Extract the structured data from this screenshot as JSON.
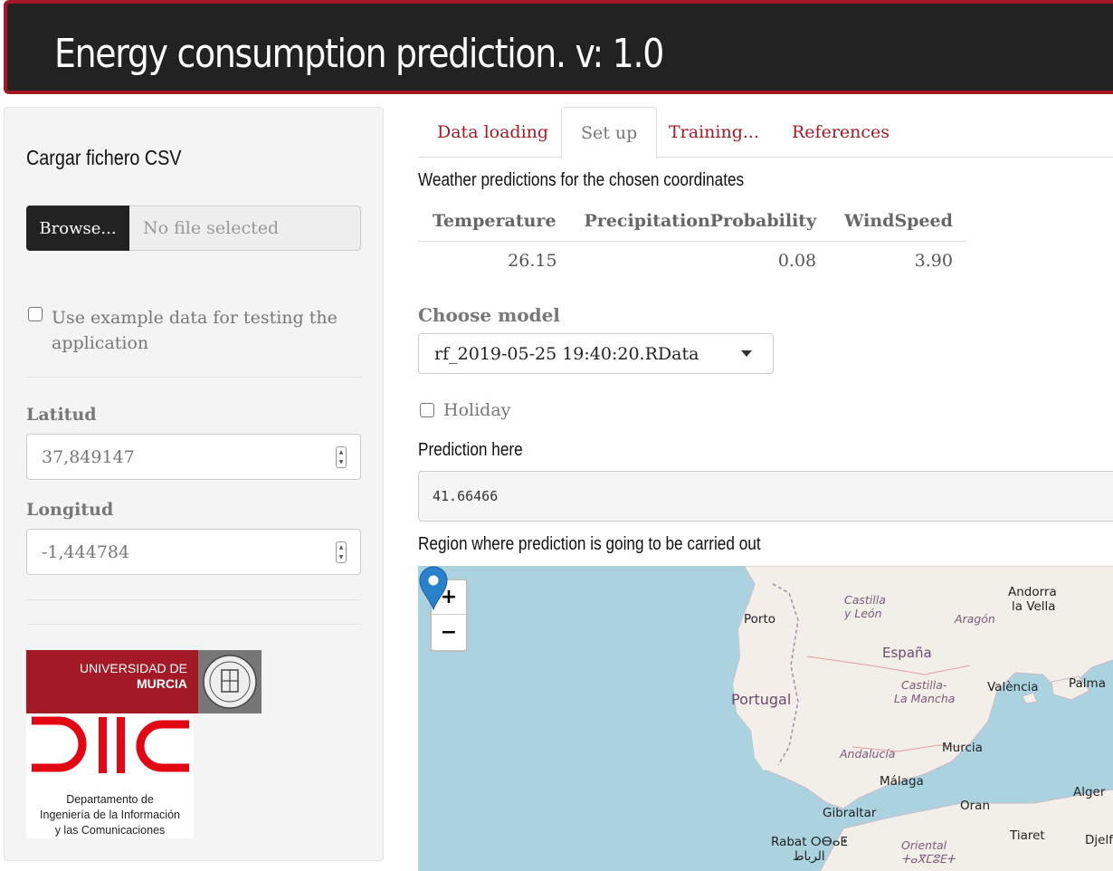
{
  "app": {
    "title": "Energy consumption prediction. v: 1.0"
  },
  "sidebar": {
    "file_title": "Cargar fichero CSV",
    "browse_label": "Browse...",
    "file_placeholder": "No file selected",
    "example_label": "Use example data for testing the application",
    "lat_label": "Latitud",
    "lat_value": "37,849147",
    "lon_label": "Longitud",
    "lon_value": "-1,444784",
    "logo_um": {
      "line1": "UNIVERSIDAD DE",
      "line2": "MURCIA"
    },
    "logo_diic": {
      "line1": "Departamento de",
      "line2": "Ingeniería de la Información",
      "line3": "y las Comunicaciones"
    }
  },
  "tabs": [
    {
      "label": "Data loading",
      "active": false
    },
    {
      "label": "Set up",
      "active": true
    },
    {
      "label": "Training...",
      "active": false
    },
    {
      "label": "References",
      "active": false
    }
  ],
  "main": {
    "weather_heading": "Weather predictions for the chosen coordinates",
    "weather_table": {
      "headers": [
        "Temperature",
        "PrecipitationProbability",
        "WindSpeed"
      ],
      "rows": [
        [
          "26.15",
          "0.08",
          "3.90"
        ]
      ]
    },
    "choose_model_label": "Choose model",
    "model_selected": "rf_2019-05-25 19:40:20.RData",
    "holiday_label": "Holiday",
    "prediction_heading": "Prediction here",
    "prediction_value": "41.66466",
    "region_heading": "Region where prediction is going to be carried out"
  },
  "map": {
    "zoom_in": "+",
    "zoom_out": "−",
    "labels": {
      "castilla_leon_1": "Castilla",
      "castilla_leon_2": "y León",
      "porto": "Porto",
      "aragon": "Aragón",
      "andorra_1": "Andorra",
      "andorra_2": "la Vella",
      "espana": "España",
      "castilla_mancha_1": "Castilla-",
      "castilla_mancha_2": "La Mancha",
      "portugal": "Portugal",
      "valencia": "València",
      "palma": "Palma",
      "andalucia": "Andalucía",
      "murcia": "Murcia",
      "malaga": "Málaga",
      "gibraltar": "Gibraltar",
      "oran": "Oran",
      "alger": "Alger",
      "rabat_1": "Rabat ⵔⴱⴰⵟ",
      "rabat_2": "الرباط",
      "oriental_1": "Oriental",
      "oriental_2": "ⵜⴰⴳⵎⵓⴹⵜ",
      "tiaret": "Tiaret",
      "djelfa": "Djelfa"
    }
  },
  "colors": {
    "accent": "#a31a26",
    "navbar": "#222222",
    "water": "#aad3df",
    "land": "#f2efe9",
    "pin": "#2a81cb"
  }
}
